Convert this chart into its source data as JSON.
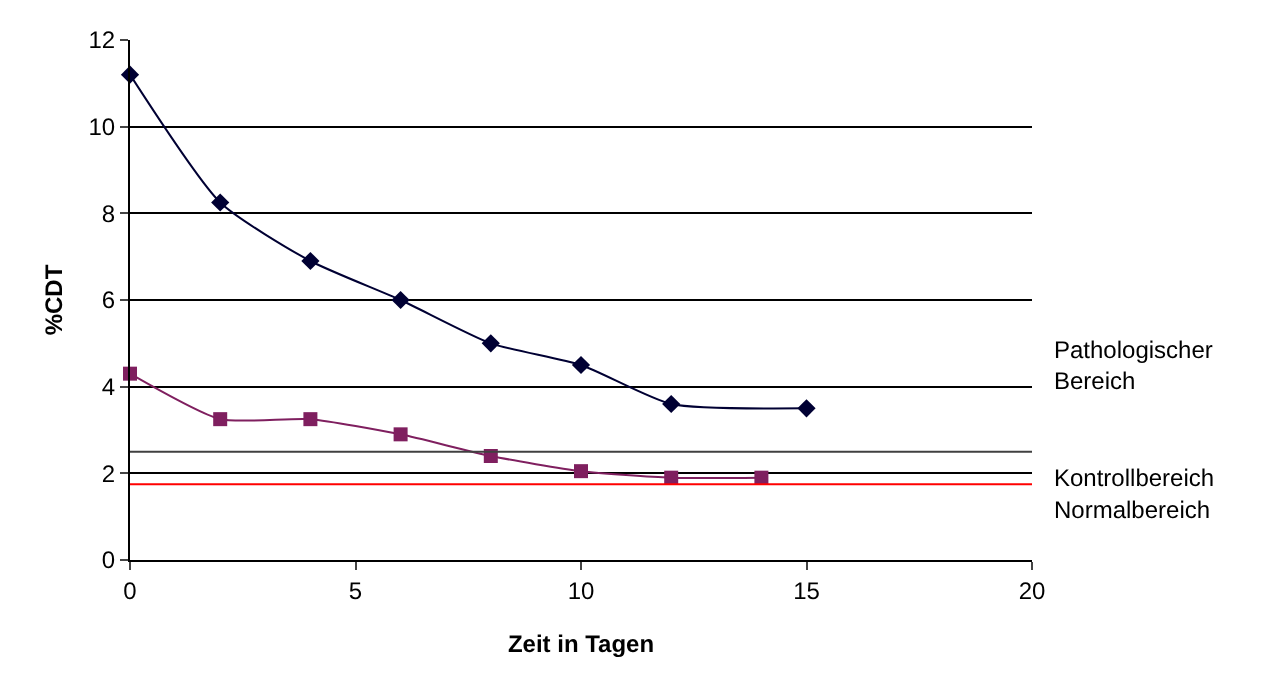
{
  "chart_data": {
    "type": "line",
    "xlabel": "Zeit in Tagen",
    "ylabel": "%CDT",
    "xlim": [
      0,
      20
    ],
    "xticks": [
      0,
      5,
      10,
      15,
      20
    ],
    "ylim": [
      0,
      12
    ],
    "yticks": [
      0,
      2,
      4,
      6,
      8,
      10,
      12
    ],
    "grid": "y",
    "series": [
      {
        "color": "#000033",
        "marker": "diamond",
        "x": [
          0,
          2,
          4,
          6,
          8,
          10,
          12,
          15
        ],
        "values": [
          11.2,
          8.25,
          6.9,
          6.0,
          5.0,
          4.5,
          3.6,
          3.5
        ]
      },
      {
        "color": "#7f1f5f",
        "marker": "square",
        "x": [
          0,
          2,
          4,
          6,
          8,
          10,
          12,
          14
        ],
        "values": [
          4.3,
          3.25,
          3.25,
          2.9,
          2.4,
          2.05,
          1.9,
          1.9
        ]
      }
    ],
    "ref_lines": [
      {
        "axis": "y",
        "value": 2.5,
        "label": "Kontrollbereich",
        "color": "#404040"
      },
      {
        "axis": "y",
        "value": 1.75,
        "label": "Normalbereich",
        "color": "#ff0000"
      }
    ],
    "annotations": [
      "Pathologischer Bereich"
    ]
  }
}
